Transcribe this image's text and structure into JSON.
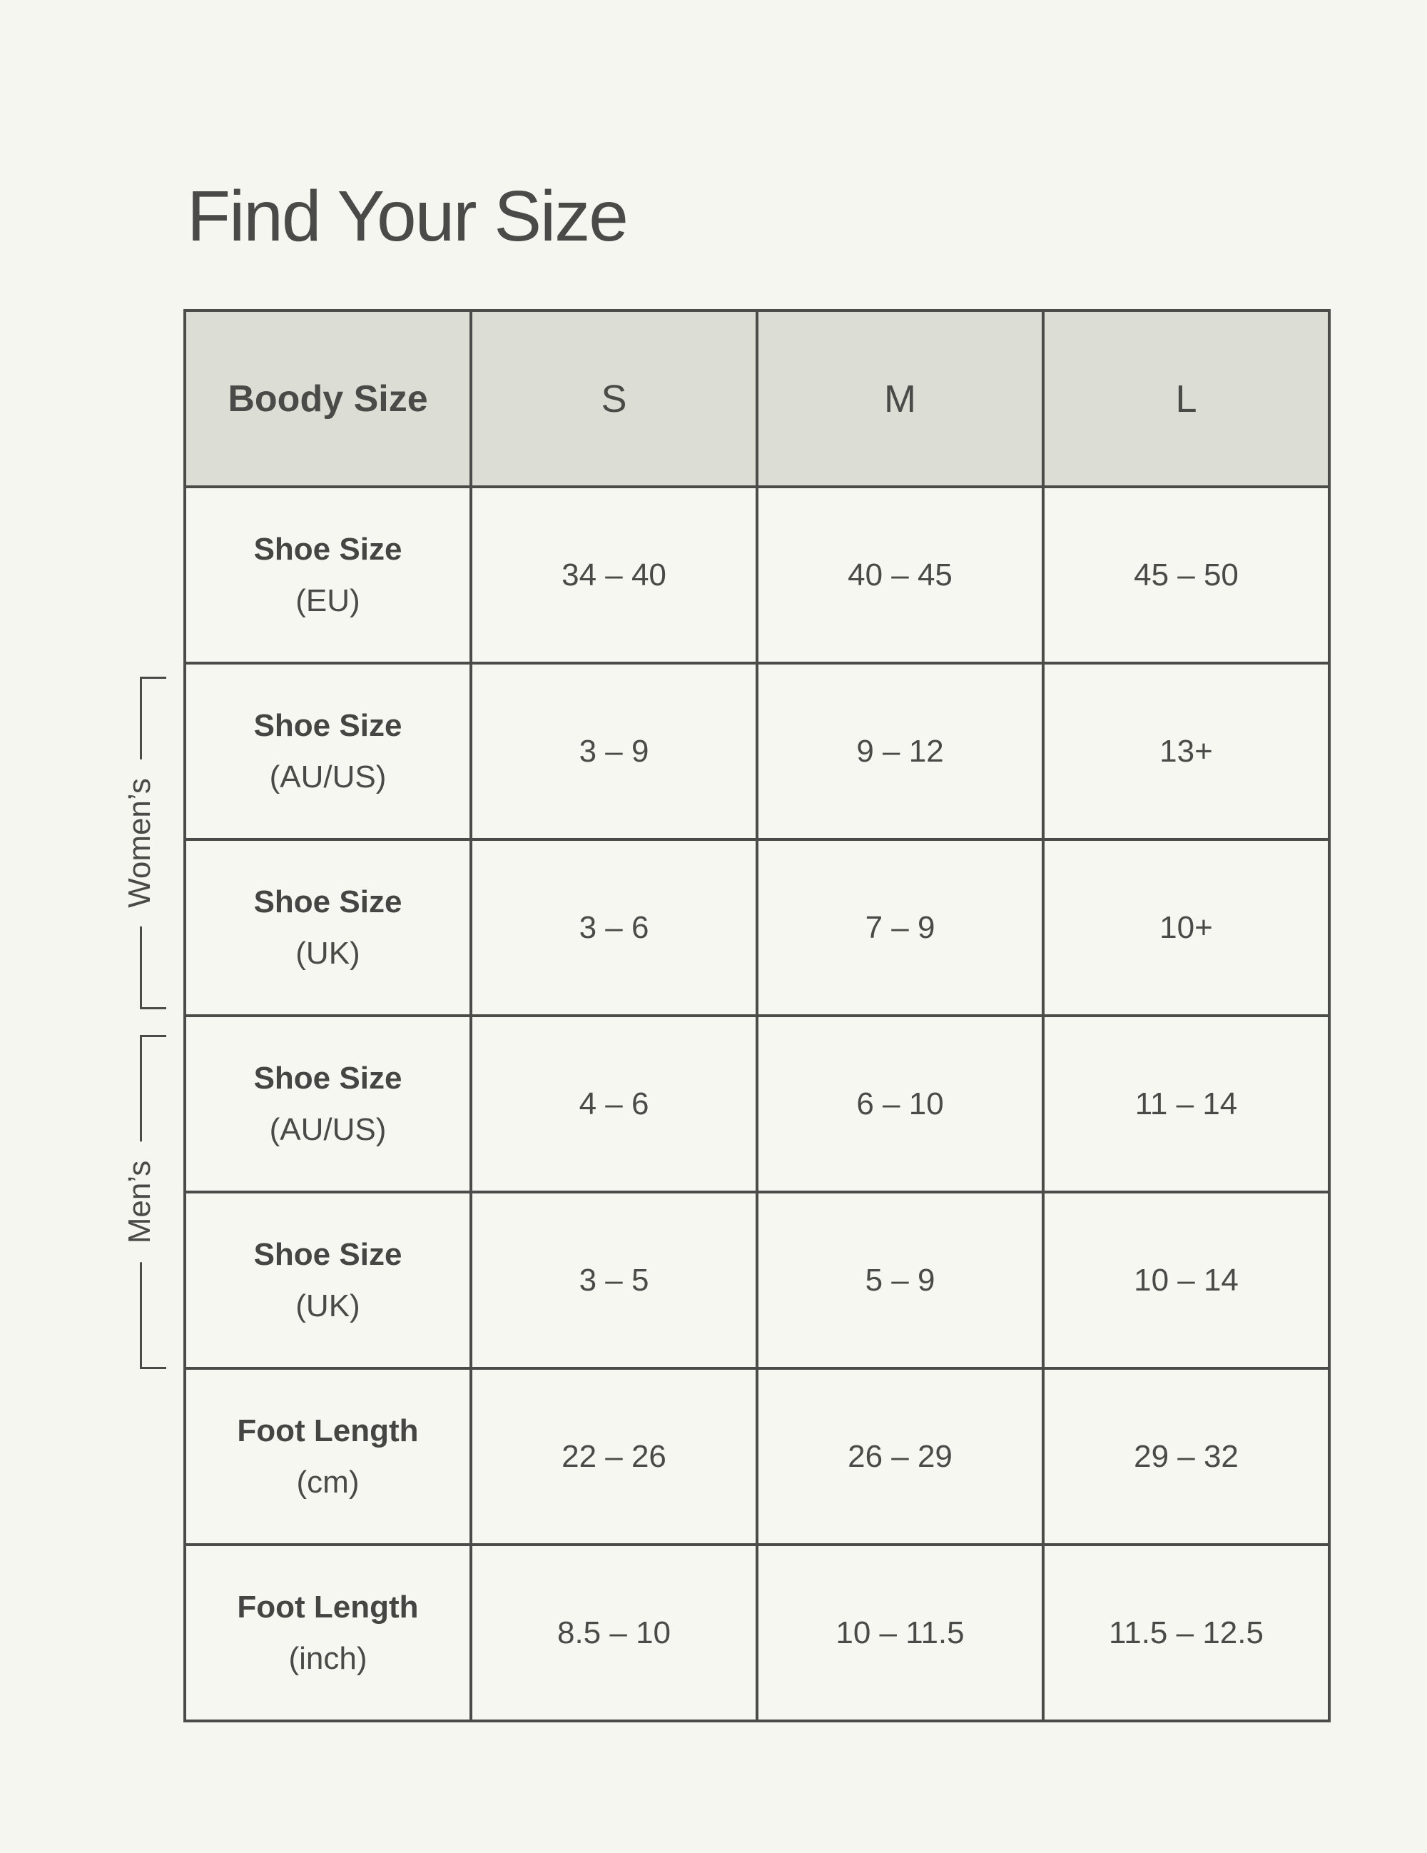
{
  "page": {
    "title": "Find Your Size"
  },
  "colors": {
    "background": "#f5f6ef",
    "cell_background": "#f6f7f1",
    "header_background": "#dcded5",
    "border": "#4b4b49",
    "text": "#4a4a48"
  },
  "side_labels": [
    {
      "text": "Women’s"
    },
    {
      "text": "Men’s"
    }
  ],
  "table": {
    "header": {
      "label": "Boody Size",
      "sizes": [
        "S",
        "M",
        "L"
      ]
    },
    "rows": [
      {
        "label": "Shoe Size",
        "unit": "(EU)",
        "values": [
          "34 – 40",
          "40 – 45",
          "45 – 50"
        ]
      },
      {
        "label": "Shoe Size",
        "unit": "(AU/US)",
        "values": [
          "3 – 9",
          "9 – 12",
          "13+"
        ]
      },
      {
        "label": "Shoe Size",
        "unit": "(UK)",
        "values": [
          "3 – 6",
          "7 – 9",
          "10+"
        ]
      },
      {
        "label": "Shoe Size",
        "unit": "(AU/US)",
        "values": [
          "4 – 6",
          "6 – 10",
          "11 – 14"
        ]
      },
      {
        "label": "Shoe Size",
        "unit": "(UK)",
        "values": [
          "3 – 5",
          "5 – 9",
          "10 – 14"
        ]
      },
      {
        "label": "Foot Length",
        "unit": "(cm)",
        "values": [
          "22 – 26",
          "26 – 29",
          "29 – 32"
        ]
      },
      {
        "label": "Foot Length",
        "unit": "(inch)",
        "values": [
          "8.5 – 10",
          "10 – 11.5",
          "11.5 – 12.5"
        ]
      }
    ]
  },
  "chart_data": {
    "type": "table",
    "title": "Find Your Size",
    "columns": [
      "Boody Size",
      "S",
      "M",
      "L"
    ],
    "rows": [
      [
        "Shoe Size (EU)",
        "34 – 40",
        "40 – 45",
        "45 – 50"
      ],
      [
        "Shoe Size (AU/US) Women’s",
        "3 – 9",
        "9 – 12",
        "13+"
      ],
      [
        "Shoe Size (UK) Women’s",
        "3 – 6",
        "7 – 9",
        "10+"
      ],
      [
        "Shoe Size (AU/US) Men’s",
        "4 – 6",
        "6 – 10",
        "11 – 14"
      ],
      [
        "Shoe Size (UK) Men’s",
        "3 – 5",
        "5 – 9",
        "10 – 14"
      ],
      [
        "Foot Length (cm)",
        "22 – 26",
        "26 – 29",
        "29 – 32"
      ],
      [
        "Foot Length (inch)",
        "8.5 – 10",
        "10 – 11.5",
        "11.5 – 12.5"
      ]
    ],
    "row_groups": [
      {
        "label": "Women’s",
        "row_indices": [
          1,
          2
        ]
      },
      {
        "label": "Men’s",
        "row_indices": [
          3,
          4
        ]
      }
    ],
    "legend_position": "none",
    "grid": true
  }
}
